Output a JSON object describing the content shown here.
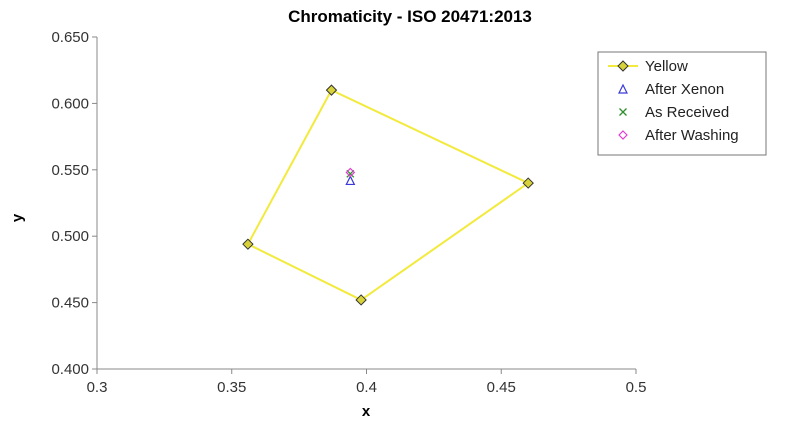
{
  "chart_data": {
    "type": "scatter",
    "title": "Chromaticity  -  ISO 20471:2013",
    "xlabel": "x",
    "ylabel": "y",
    "xlim": [
      0.3,
      0.5
    ],
    "ylim": [
      0.4,
      0.65
    ],
    "x_ticks": [
      "0.3",
      "0.35",
      "0.4",
      "0.45",
      "0.5"
    ],
    "y_ticks": [
      "0.400",
      "0.450",
      "0.500",
      "0.550",
      "0.600",
      "0.650"
    ],
    "grid": false,
    "legend_position": "top-right",
    "series": [
      {
        "name": "Yellow",
        "marker": "diamond",
        "line": true,
        "closed": true,
        "color": "#f2ea3c",
        "marker_fill": "#d8d23a",
        "points": [
          {
            "x": 0.387,
            "y": 0.61
          },
          {
            "x": 0.46,
            "y": 0.54
          },
          {
            "x": 0.398,
            "y": 0.452
          },
          {
            "x": 0.356,
            "y": 0.494
          }
        ]
      },
      {
        "name": "After Xenon",
        "marker": "triangle",
        "line": false,
        "color": "#3a3ad8",
        "points": [
          {
            "x": 0.394,
            "y": 0.542
          }
        ]
      },
      {
        "name": "As Received",
        "marker": "x",
        "line": false,
        "color": "#2f8f2f",
        "points": [
          {
            "x": 0.394,
            "y": 0.547
          }
        ]
      },
      {
        "name": "After Washing",
        "marker": "diamond-open",
        "line": false,
        "color": "#e040d0",
        "points": [
          {
            "x": 0.394,
            "y": 0.548
          }
        ]
      }
    ]
  }
}
